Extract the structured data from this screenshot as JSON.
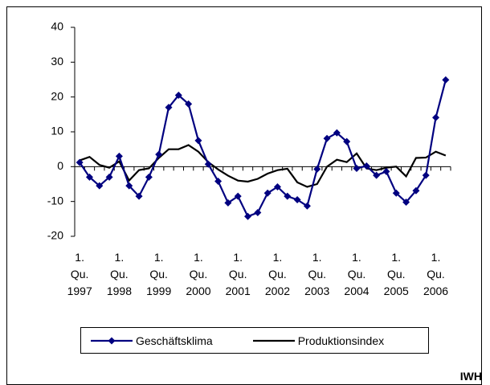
{
  "chart_data": {
    "type": "line",
    "categories": [
      "1. Qu. 1997",
      null,
      null,
      null,
      "1. Qu. 1998",
      null,
      null,
      null,
      "1. Qu. 1999",
      null,
      null,
      null,
      "1. Qu. 2000",
      null,
      null,
      null,
      "1. Qu. 2001",
      null,
      null,
      null,
      "1. Qu. 2002",
      null,
      null,
      null,
      "1. Qu. 2003",
      null,
      null,
      null,
      "1. Qu. 2004",
      null,
      null,
      null,
      "1. Qu. 2005",
      null,
      null,
      null,
      "1. Qu. 2006",
      null
    ],
    "series": [
      {
        "name": "Geschäftsklima",
        "color": "#000080",
        "marker": "diamond",
        "values": [
          1.2,
          -3,
          -5.5,
          -3,
          3,
          -5.5,
          -8.5,
          -3,
          3.5,
          17,
          20.5,
          18,
          7.5,
          0.7,
          -4.2,
          -10.4,
          -8.5,
          -14.3,
          -13.2,
          -7.6,
          -5.8,
          -8.5,
          -9.5,
          -11.3,
          -0.7,
          8.1,
          9.7,
          7.2,
          -0.5,
          0.2,
          -2.5,
          -1.4,
          -7.6,
          -10.2,
          -6.9,
          -2.5,
          14.1,
          24.9
        ]
      },
      {
        "name": "Produktionsindex",
        "color": "#000000",
        "marker": null,
        "values": [
          1.8,
          2.8,
          0.5,
          -0.3,
          1.5,
          -4,
          -1,
          -0.5,
          2.5,
          5,
          5,
          6.2,
          4.3,
          1.3,
          -0.8,
          -2.6,
          -4,
          -4.3,
          -3.5,
          -2,
          -1,
          -0.6,
          -4.5,
          -5.8,
          -5,
          0,
          2,
          1.3,
          3.8,
          -0.5,
          -1,
          -0.3,
          0,
          -2.8,
          2.5,
          2.6,
          4.3,
          3.2
        ]
      }
    ],
    "ylim": [
      -20,
      40
    ],
    "yticks": [
      -20,
      -10,
      0,
      10,
      20,
      30,
      40
    ],
    "grid": false,
    "legend": "bottom",
    "source": "IWH"
  }
}
